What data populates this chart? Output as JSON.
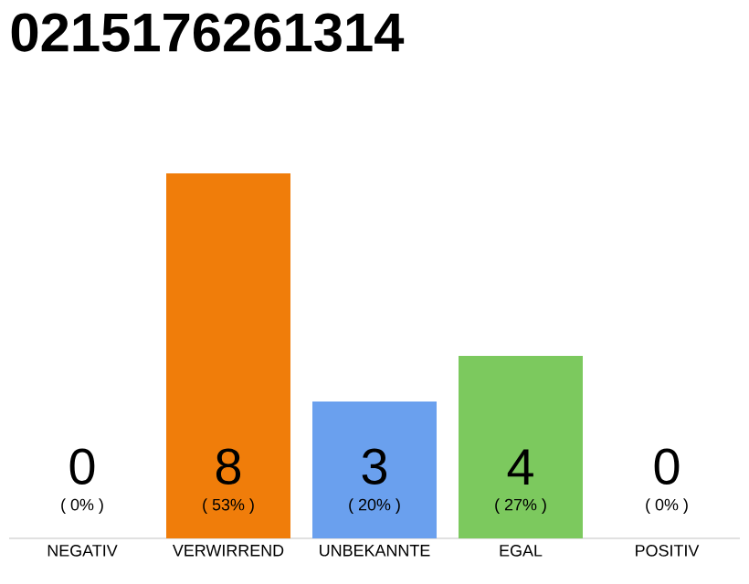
{
  "chart_data": {
    "type": "bar",
    "title": "0215176261314",
    "categories": [
      "NEGATIV",
      "VERWIRREND",
      "UNBEKANNTE",
      "EGAL",
      "POSITIV"
    ],
    "values": [
      0,
      8,
      3,
      4,
      0
    ],
    "colors": [
      "#e0e0e0",
      "#f07d0a",
      "#6aa0ee",
      "#7cc95e",
      "#e0e0e0"
    ],
    "data_labels": true,
    "annotations": [
      {
        "text": "( 0% )",
        "x": "NEGATIV",
        "y": 0
      },
      {
        "text": "( 53% )",
        "x": "VERWIRREND",
        "y": 0
      },
      {
        "text": "( 20% )",
        "x": "UNBEKANNTE",
        "y": 0
      },
      {
        "text": "( 27% )",
        "x": "EGAL",
        "y": 0
      },
      {
        "text": "( 0% )",
        "x": "POSITIV",
        "y": 0
      }
    ]
  }
}
